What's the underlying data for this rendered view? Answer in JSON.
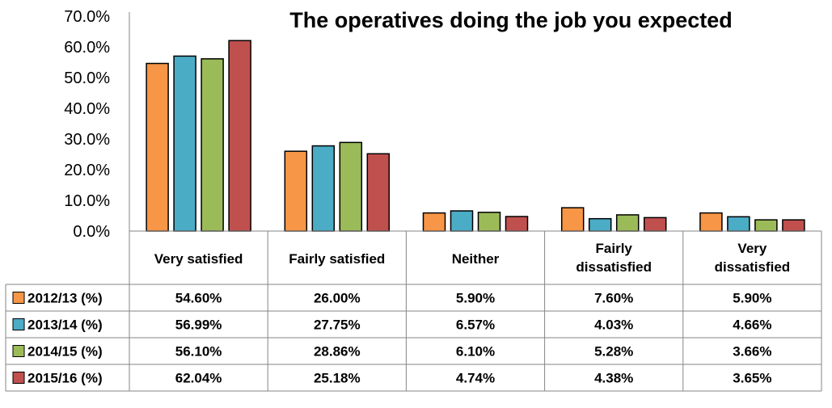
{
  "chart_data": {
    "type": "bar",
    "title": "The operatives doing the job you expected",
    "categories": [
      [
        "Very satisfied"
      ],
      [
        "Fairly satisfied"
      ],
      [
        "Neither"
      ],
      [
        "Fairly",
        "dissatisfied"
      ],
      [
        "Very",
        "dissatisfied"
      ]
    ],
    "ylim": [
      0,
      70
    ],
    "yticks": [
      "0.0%",
      "10.0%",
      "20.0%",
      "30.0%",
      "40.0%",
      "50.0%",
      "60.0%",
      "70.0%"
    ],
    "grid": false,
    "legend": "data-table",
    "series": [
      {
        "name": "2012/13 (%)",
        "color": "#f79646",
        "values": [
          54.6,
          26.0,
          5.9,
          7.6,
          5.9
        ],
        "labels": [
          "54.60%",
          "26.00%",
          "5.90%",
          "7.60%",
          "5.90%"
        ]
      },
      {
        "name": "2013/14 (%)",
        "color": "#4bacc6",
        "values": [
          56.99,
          27.75,
          6.57,
          4.03,
          4.66
        ],
        "labels": [
          "56.99%",
          "27.75%",
          "6.57%",
          "4.03%",
          "4.66%"
        ]
      },
      {
        "name": "2014/15 (%)",
        "color": "#9bbb59",
        "values": [
          56.1,
          28.86,
          6.1,
          5.28,
          3.66
        ],
        "labels": [
          "56.10%",
          "28.86%",
          "6.10%",
          "5.28%",
          "3.66%"
        ]
      },
      {
        "name": "2015/16 (%)",
        "color": "#c0504d",
        "values": [
          62.04,
          25.18,
          4.74,
          4.38,
          3.65
        ],
        "labels": [
          "62.04%",
          "25.18%",
          "4.74%",
          "4.38%",
          "3.65%"
        ]
      }
    ]
  }
}
